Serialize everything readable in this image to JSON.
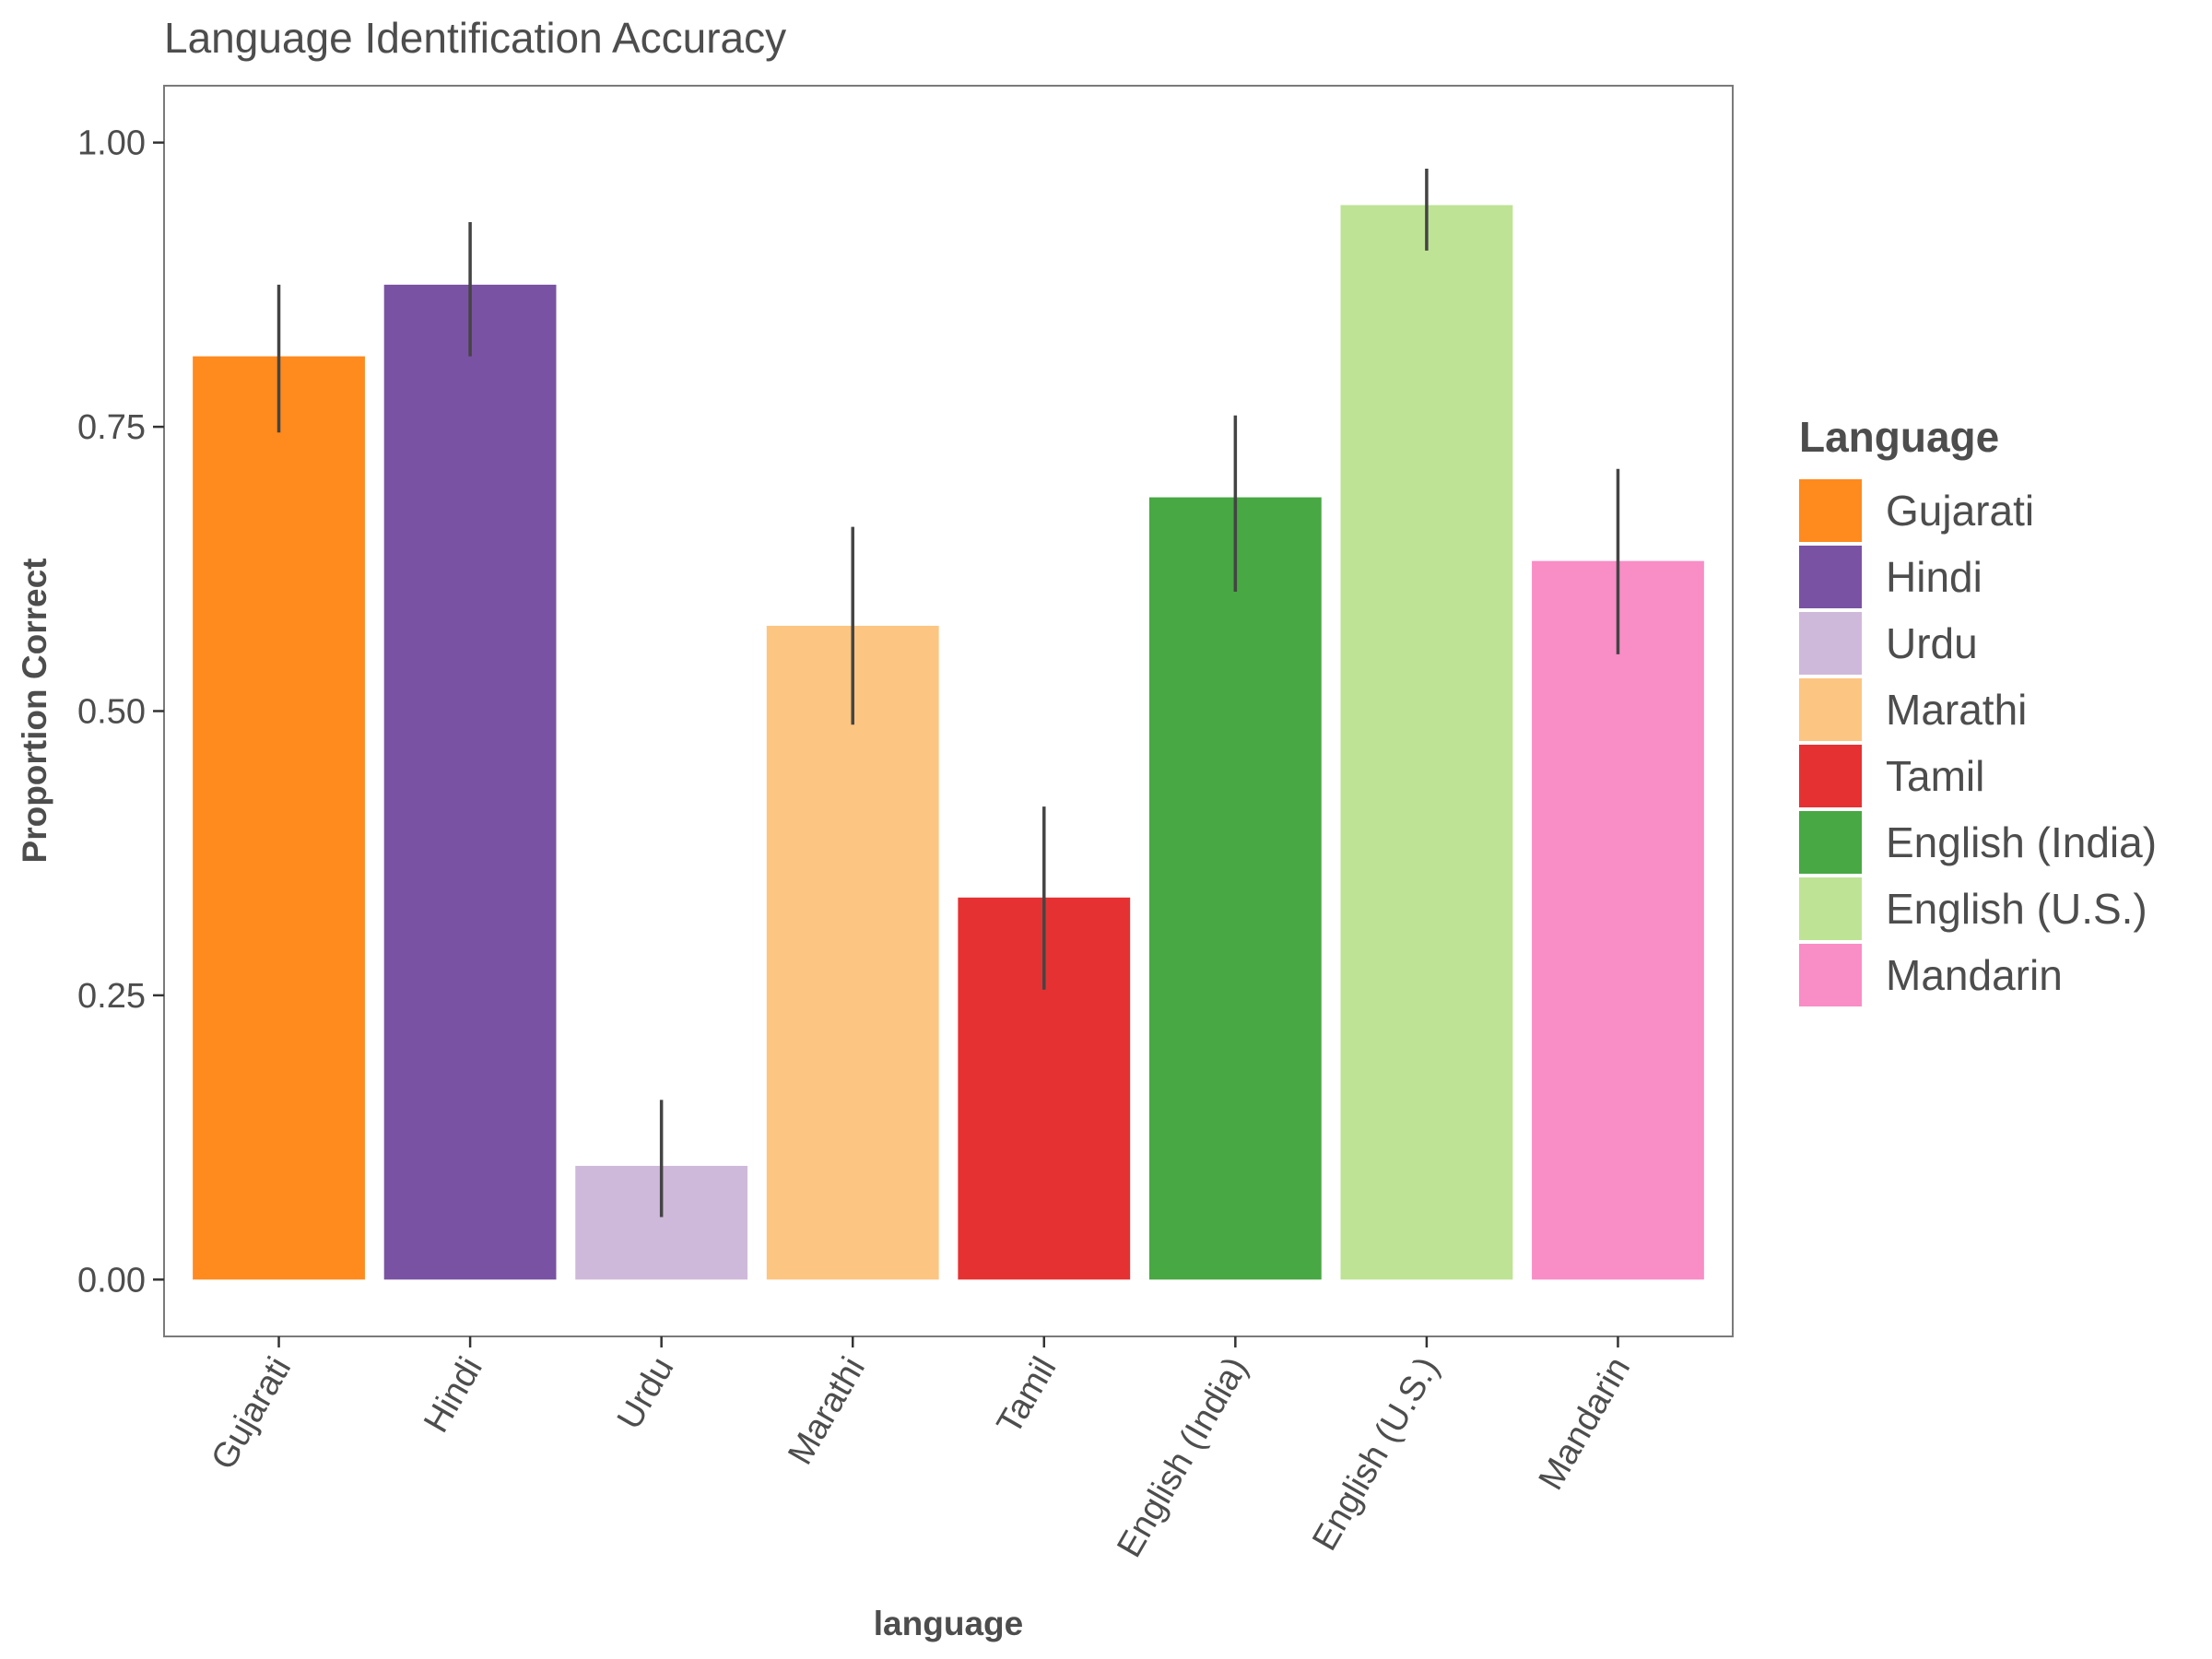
{
  "chart_data": {
    "type": "bar",
    "title": "Language Identification Accuracy",
    "xlabel": "language",
    "ylabel": "Proportion Correct",
    "categories": [
      "Gujarati",
      "Hindi",
      "Urdu",
      "Marathi",
      "Tamil",
      "English (India)",
      "English (U.S.)",
      "Mandarin"
    ],
    "values": [
      0.812,
      0.875,
      0.1,
      0.575,
      0.336,
      0.688,
      0.945,
      0.632
    ],
    "error_low": [
      0.745,
      0.812,
      0.055,
      0.488,
      0.255,
      0.605,
      0.905,
      0.55
    ],
    "error_high": [
      0.875,
      0.93,
      0.158,
      0.662,
      0.416,
      0.76,
      0.977,
      0.713
    ],
    "colors": [
      "#ff8a1e",
      "#7a52a3",
      "#cfb9da",
      "#fdc582",
      "#e63132",
      "#48a843",
      "#bee395",
      "#f98dc6"
    ],
    "ylim": [
      -0.05,
      1.05
    ],
    "yticks": [
      0.0,
      0.25,
      0.5,
      0.75,
      1.0
    ],
    "ytick_labels": [
      "0.00",
      "0.25",
      "0.50",
      "0.75",
      "1.00"
    ],
    "grid": false,
    "legend": {
      "title": "Language",
      "position": "right",
      "entries": [
        "Gujarati",
        "Hindi",
        "Urdu",
        "Marathi",
        "Tamil",
        "English (India)",
        "English (U.S.)",
        "Mandarin"
      ]
    },
    "errorbar_color": "#444444"
  }
}
